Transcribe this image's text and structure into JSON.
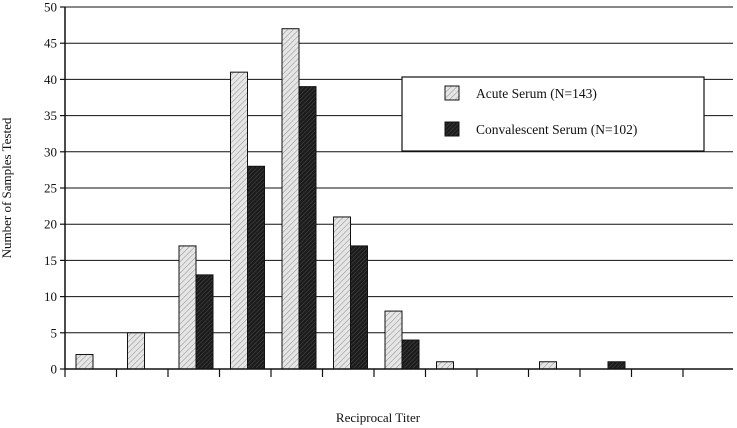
{
  "chart_data": {
    "type": "bar",
    "title": "",
    "xlabel": "Reciprocal Titer",
    "ylabel": "Number of Samples Tested",
    "ylim": [
      0,
      50
    ],
    "yticks": [
      0,
      5,
      10,
      15,
      20,
      25,
      30,
      35,
      40,
      45,
      50
    ],
    "grid": true,
    "legend_position": "upper-right",
    "categories": [
      "",
      "",
      "",
      "",
      "",
      "",
      "",
      "",
      "",
      "",
      "",
      ""
    ],
    "series": [
      {
        "name": "Acute Serum (N=143)",
        "pattern": "light-hatch",
        "values": [
          2,
          5,
          17,
          41,
          47,
          21,
          8,
          1,
          0,
          1,
          0,
          0
        ]
      },
      {
        "name": "Convalescent Serum (N=102)",
        "pattern": "dark",
        "values": [
          0,
          0,
          13,
          28,
          39,
          17,
          4,
          0,
          0,
          0,
          1,
          0
        ]
      }
    ]
  }
}
